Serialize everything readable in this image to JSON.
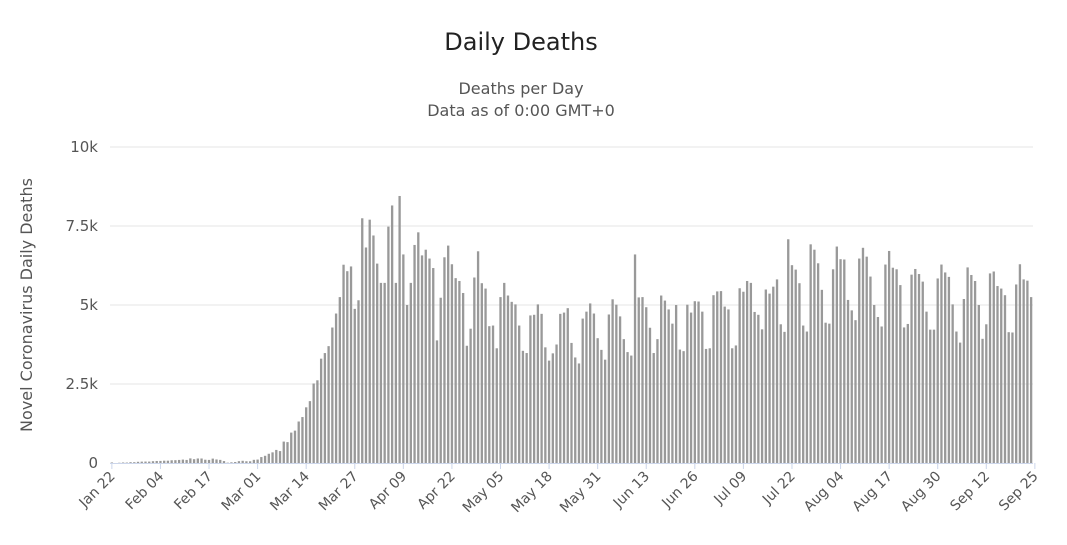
{
  "chart_data": {
    "type": "bar",
    "title": "Daily Deaths",
    "subtitle_lines": [
      "Deaths per Day",
      "Data as of 0:00 GMT+0"
    ],
    "ylabel": "Novel Coronavirus Daily Deaths",
    "xlabel": "",
    "ylim": [
      0,
      10000
    ],
    "yticks": [
      0,
      2500,
      5000,
      7500,
      10000
    ],
    "ytick_labels": [
      "0",
      "2.5k",
      "5k",
      "7.5k",
      "10k"
    ],
    "xtick_labels": [
      "Jan 22",
      "Feb 04",
      "Feb 17",
      "Mar 01",
      "Mar 14",
      "Mar 27",
      "Apr 09",
      "Apr 22",
      "May 05",
      "May 18",
      "May 31",
      "Jun 13",
      "Jun 26",
      "Jul 09",
      "Jul 22",
      "Aug 04",
      "Aug 17",
      "Aug 30",
      "Sep 12",
      "Sep 25"
    ],
    "grid": true,
    "bar_color": "#999999",
    "series": [
      {
        "values": [
          17,
          0,
          8,
          16,
          14,
          26,
          26,
          38,
          43,
          46,
          45,
          57,
          64,
          66,
          73,
          73,
          86,
          89,
          97,
          108,
          97,
          146,
          121,
          143,
          142,
          104,
          98,
          139,
          112,
          99,
          61,
          11,
          22,
          31,
          58,
          70,
          55,
          54,
          100,
          109,
          188,
          228,
          292,
          337,
          414,
          377,
          678,
          661,
          962,
          1024,
          1313,
          1454,
          1762,
          1958,
          2516,
          2617,
          3302,
          3479,
          3698,
          4287,
          4730,
          5250,
          6275,
          6070,
          6220,
          4878,
          5150,
          7745,
          6820,
          7700,
          7200,
          6310,
          5700,
          5700,
          7480,
          8150,
          5700,
          8450,
          6600,
          5000,
          5700,
          6900,
          7300,
          6570,
          6750,
          6470,
          6170,
          3880,
          5230,
          6510,
          6880,
          6290,
          5850,
          5760,
          5380,
          3710,
          4250,
          5870,
          6700,
          5690,
          5520,
          4330,
          4350,
          3630,
          5250,
          5700,
          5300,
          5100,
          5020,
          4350,
          3550,
          3480,
          4670,
          4690,
          5020,
          4720,
          3660,
          3240,
          3470,
          3750,
          4720,
          4760,
          4900,
          3800,
          3340,
          3150,
          4570,
          4790,
          5050,
          4730,
          3950,
          3580,
          3270,
          4700,
          5180,
          5010,
          4640,
          3920,
          3510,
          3400,
          6600,
          5240,
          5250,
          4930,
          4280,
          3480,
          3920,
          5300,
          5140,
          4860,
          4410,
          5000,
          3590,
          3540,
          5010,
          4760,
          5120,
          5110,
          4790,
          3610,
          3630,
          5310,
          5430,
          5440,
          4950,
          4860,
          3630,
          3720,
          5530,
          5420,
          5760,
          5700,
          4780,
          4690,
          4230,
          5490,
          5360,
          5580,
          5810,
          4390,
          4150,
          7080,
          6260,
          6120,
          5690,
          4350,
          4160,
          6920,
          6750,
          6320,
          5480,
          4440,
          4410,
          6130,
          6850,
          6450,
          6440,
          5160,
          4830,
          4520,
          6470,
          6810,
          6530,
          5900,
          5000,
          4620,
          4320,
          6280,
          6710,
          6180,
          6130,
          5630,
          4290,
          4400,
          5960,
          6140,
          5980,
          5740,
          4790,
          4220,
          4220,
          5840,
          6280,
          6030,
          5890,
          5020,
          4160,
          3810,
          5190,
          6190,
          5950,
          5760,
          5000,
          3930,
          4390,
          6000,
          6060,
          5600,
          5520,
          5310,
          4140,
          4130,
          5650,
          6290,
          5810,
          5770,
          5250
        ]
      }
    ]
  }
}
